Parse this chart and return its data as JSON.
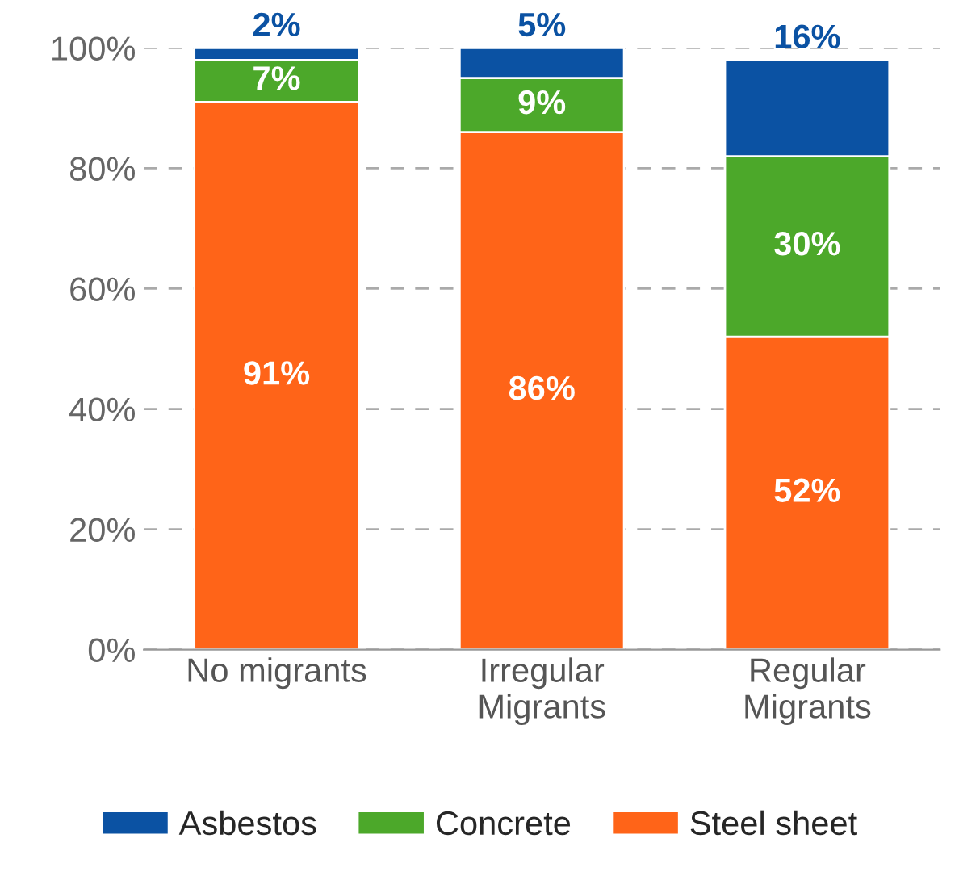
{
  "chart_data": {
    "type": "bar",
    "stacked": true,
    "categories": [
      "No migrants",
      "Irregular\nMigrants",
      "Regular\nMigrants"
    ],
    "series": [
      {
        "name": "Steel sheet",
        "color": "#ff6418",
        "values": [
          91,
          86,
          52
        ],
        "value_labels": [
          "91%",
          "86%",
          "52%"
        ]
      },
      {
        "name": "Concrete",
        "color": "#4ca82a",
        "values": [
          7,
          9,
          30
        ],
        "value_labels": [
          "7%",
          "9%",
          "30%"
        ]
      },
      {
        "name": "Asbestos",
        "color": "#0b52a3",
        "values": [
          2,
          5,
          16
        ],
        "value_labels": [
          "2%",
          "5%",
          "16%"
        ]
      }
    ],
    "ylim": [
      0,
      100
    ],
    "yticks": [
      {
        "value": 0,
        "label": "0%"
      },
      {
        "value": 20,
        "label": "20%"
      },
      {
        "value": 40,
        "label": "40%"
      },
      {
        "value": 60,
        "label": "60%"
      },
      {
        "value": 80,
        "label": "80%"
      },
      {
        "value": 100,
        "label": "100%"
      }
    ],
    "grid": "y",
    "legend": "bottom"
  }
}
